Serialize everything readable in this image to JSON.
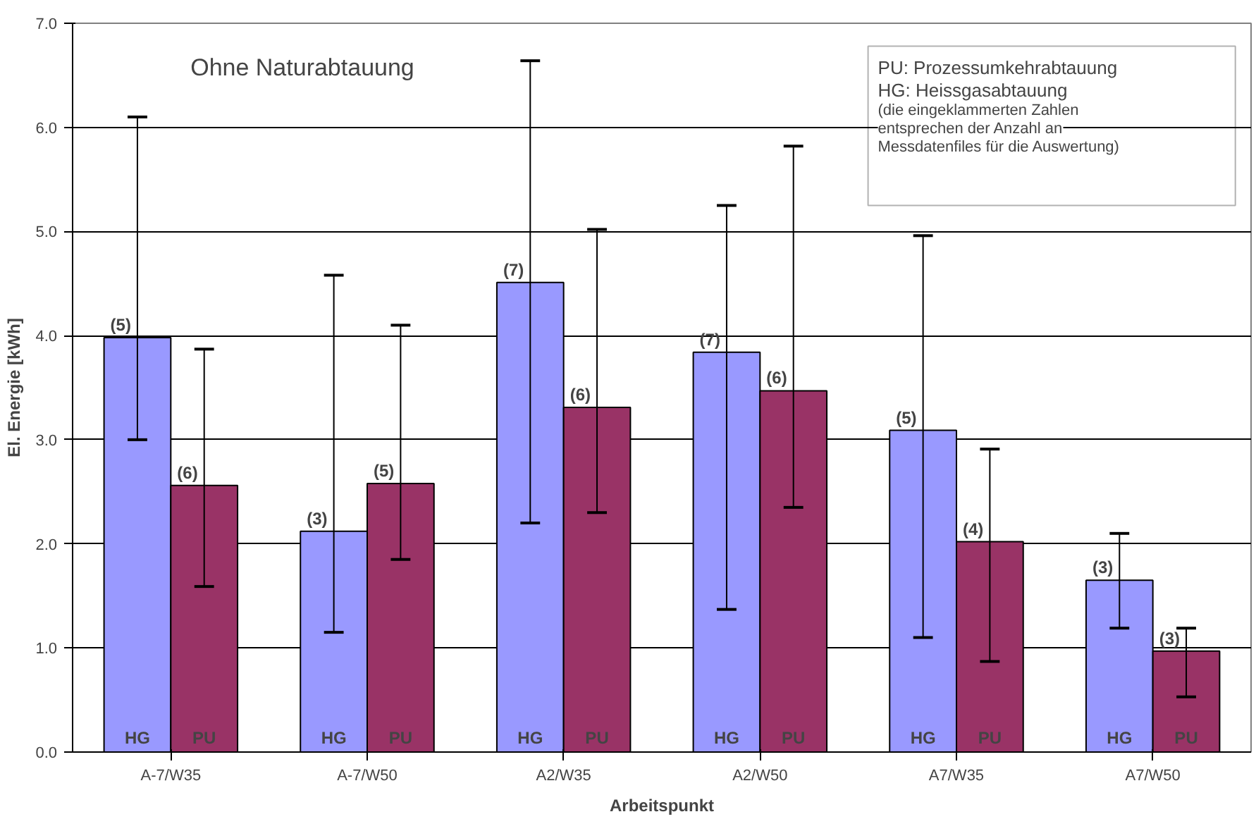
{
  "chart_data": {
    "type": "bar",
    "title": "Ohne Naturabtauung",
    "xlabel": "Arbeitspunkt",
    "ylabel": "El. Energie [kWh]",
    "categories": [
      "A-7/W35",
      "A-7/W50",
      "A2/W35",
      "A2/W50",
      "A7/W35",
      "A7/W50"
    ],
    "series": [
      {
        "name": "HG",
        "color": "#9999ff",
        "values": [
          3.98,
          2.12,
          4.51,
          3.84,
          3.09,
          1.65
        ],
        "errors": [
          [
            3.0,
            6.1
          ],
          [
            1.15,
            4.58
          ],
          [
            2.2,
            6.64
          ],
          [
            1.37,
            5.25
          ],
          [
            1.1,
            4.96
          ],
          [
            1.19,
            2.1
          ]
        ]
      },
      {
        "name": "PU",
        "color": "#993366",
        "values": [
          2.56,
          2.58,
          3.31,
          3.47,
          2.02,
          0.97
        ],
        "errors": [
          [
            1.59,
            3.87
          ],
          [
            1.85,
            4.1
          ],
          [
            2.3,
            5.02
          ],
          [
            2.35,
            5.82
          ],
          [
            0.87,
            2.91
          ],
          [
            0.53,
            1.19
          ]
        ]
      }
    ],
    "ylim": [
      0,
      7
    ],
    "yticks": [
      {
        "value": 0,
        "label": "0.0"
      },
      {
        "value": 1,
        "label": "1.0"
      },
      {
        "value": 2,
        "label": "2.0"
      },
      {
        "value": 3,
        "label": "3.0"
      },
      {
        "value": 4,
        "label": "4.0"
      },
      {
        "value": 5,
        "label": "5.0"
      },
      {
        "value": 6,
        "label": "6.0"
      },
      {
        "value": 7,
        "label": "7.0"
      }
    ],
    "grid": "y",
    "annotations": [
      "PU: Prozessumkehrabtauung",
      "HG: Heissgasabtauung",
      "(die eingeklammerten Zahlen\nentsprechen der Anzahl an\nMessdatenfiles für die Auswertung)",
      {
        "text": "(5)",
        "x": "A-7/W35",
        "y": 3.98
      },
      {
        "text": "(6)",
        "x": "A-7/W35",
        "y": 2.56
      },
      {
        "text": "(3)",
        "x": "A-7/W50",
        "y": 2.12
      },
      {
        "text": "(5)",
        "x": "A-7/W50",
        "y": 2.58
      },
      {
        "text": "(7)",
        "x": "A2/W35",
        "y": 4.51
      },
      {
        "text": "(6)",
        "x": "A2/W35",
        "y": 3.31
      },
      {
        "text": "(7)",
        "x": "A2/W50",
        "y": 3.84
      },
      {
        "text": "(6)",
        "x": "A2/W50",
        "y": 3.47
      },
      {
        "text": "(5)",
        "x": "A7/W35",
        "y": 3.09
      },
      {
        "text": "(4)",
        "x": "A7/W35",
        "y": 2.02
      },
      {
        "text": "(3)",
        "x": "A7/W50",
        "y": 1.65
      },
      {
        "text": "(3)",
        "x": "A7/W50",
        "y": 0.97
      }
    ]
  }
}
